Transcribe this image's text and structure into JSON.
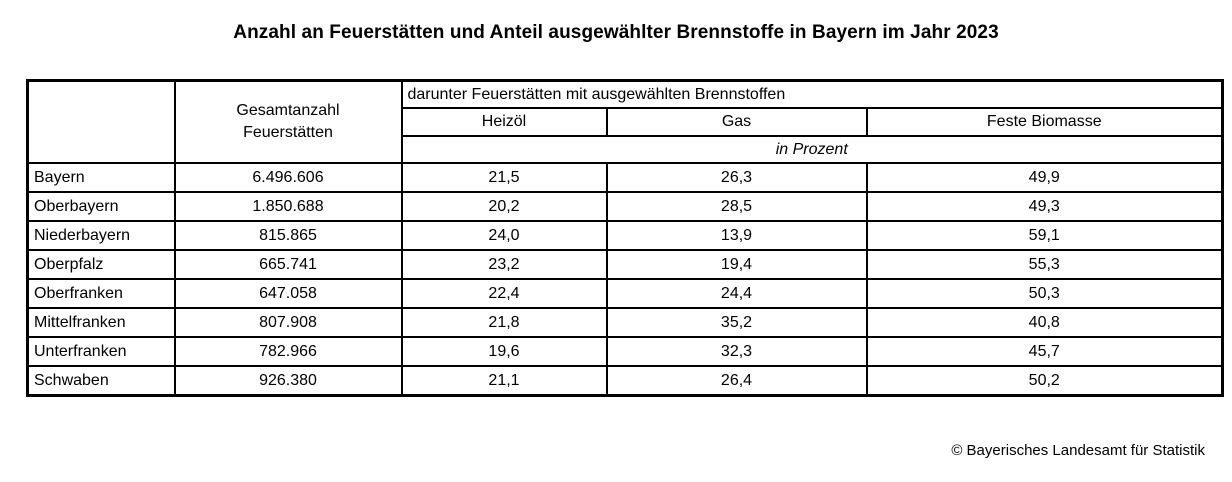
{
  "title": "Anzahl an Feuerstätten und Anteil ausgewählter Brennstoffe in Bayern im Jahr 2023",
  "table": {
    "total_header": "Gesamtanzahl Feuerstätten",
    "group_header": "darunter Feuerstätten mit ausgewählten Brennstoffen",
    "fuel_headers": [
      "Heizöl",
      "Gas",
      "Feste Biomasse"
    ],
    "unit_label": "in Prozent",
    "rows": [
      {
        "region": "Bayern",
        "total": "6.496.606",
        "heizoel": "21,5",
        "gas": "26,3",
        "biomasse": "49,9"
      },
      {
        "region": "Oberbayern",
        "total": "1.850.688",
        "heizoel": "20,2",
        "gas": "28,5",
        "biomasse": "49,3"
      },
      {
        "region": "Niederbayern",
        "total": "815.865",
        "heizoel": "24,0",
        "gas": "13,9",
        "biomasse": "59,1"
      },
      {
        "region": "Oberpfalz",
        "total": "665.741",
        "heizoel": "23,2",
        "gas": "19,4",
        "biomasse": "55,3"
      },
      {
        "region": "Oberfranken",
        "total": "647.058",
        "heizoel": "22,4",
        "gas": "24,4",
        "biomasse": "50,3"
      },
      {
        "region": "Mittelfranken",
        "total": "807.908",
        "heizoel": "21,8",
        "gas": "35,2",
        "biomasse": "40,8"
      },
      {
        "region": "Unterfranken",
        "total": "782.966",
        "heizoel": "19,6",
        "gas": "32,3",
        "biomasse": "45,7"
      },
      {
        "region": "Schwaben",
        "total": "926.380",
        "heizoel": "21,1",
        "gas": "26,4",
        "biomasse": "50,2"
      }
    ]
  },
  "footer": {
    "copyright": "© Bayerisches Landesamt für Statistik"
  },
  "colors": {
    "text": "#000000",
    "border": "#000000",
    "background": "#ffffff"
  }
}
